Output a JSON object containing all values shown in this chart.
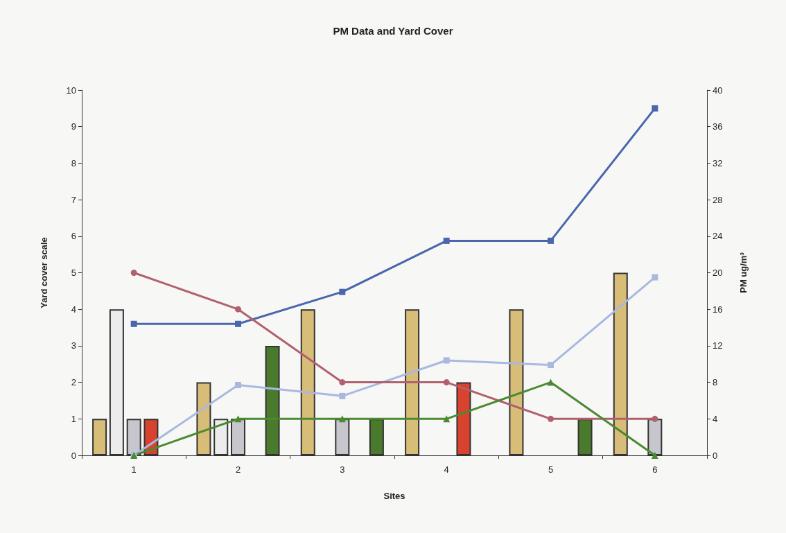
{
  "chart_data": {
    "type": "bar",
    "title": "PM Data and Yard Cover",
    "xlabel": "Sites",
    "ylabel": "Yard cover scale",
    "y2label": "PM ug/m³",
    "categories": [
      "1",
      "2",
      "3",
      "4",
      "5",
      "6"
    ],
    "series": [
      {
        "color": "#d8bd78",
        "values": [
          1,
          2,
          4,
          4,
          4,
          5
        ]
      },
      {
        "color": "#ececec",
        "values": [
          4,
          1,
          null,
          null,
          null,
          null
        ]
      },
      {
        "color": "#c6c6cc",
        "values": [
          1,
          1,
          1,
          null,
          null,
          1
        ]
      },
      {
        "color": "#d8432f",
        "values": [
          1,
          null,
          null,
          2,
          null,
          null
        ]
      },
      {
        "color": "#4a7a2c",
        "values": [
          null,
          3,
          1,
          null,
          1,
          null
        ]
      },
      {
        "type": "line",
        "axis": "y2",
        "marker": "square",
        "color": "#4a66ad",
        "values": [
          14.4,
          14.4,
          17.9,
          23.5,
          23.5,
          38
        ]
      },
      {
        "type": "line",
        "axis": "y2",
        "marker": "square",
        "color": "#a9b8e0",
        "values": [
          0,
          7.7,
          6.5,
          10.4,
          9.9,
          19.5
        ]
      },
      {
        "type": "line",
        "marker": "circle",
        "color": "#b0606e",
        "values": [
          5,
          4,
          2,
          2,
          1,
          1
        ]
      },
      {
        "type": "line",
        "marker": "triangle",
        "color": "#4a8a30",
        "values": [
          0,
          1,
          1,
          1,
          2,
          0
        ]
      }
    ],
    "ylim": [
      0,
      10
    ],
    "yticks": [
      0,
      1,
      2,
      3,
      4,
      5,
      6,
      7,
      8,
      9,
      10
    ],
    "y2lim": [
      0,
      40
    ],
    "y2ticks": [
      0,
      4,
      8,
      12,
      16,
      20,
      24,
      28,
      32,
      36,
      40
    ],
    "grid": false,
    "line_style": "solid"
  }
}
